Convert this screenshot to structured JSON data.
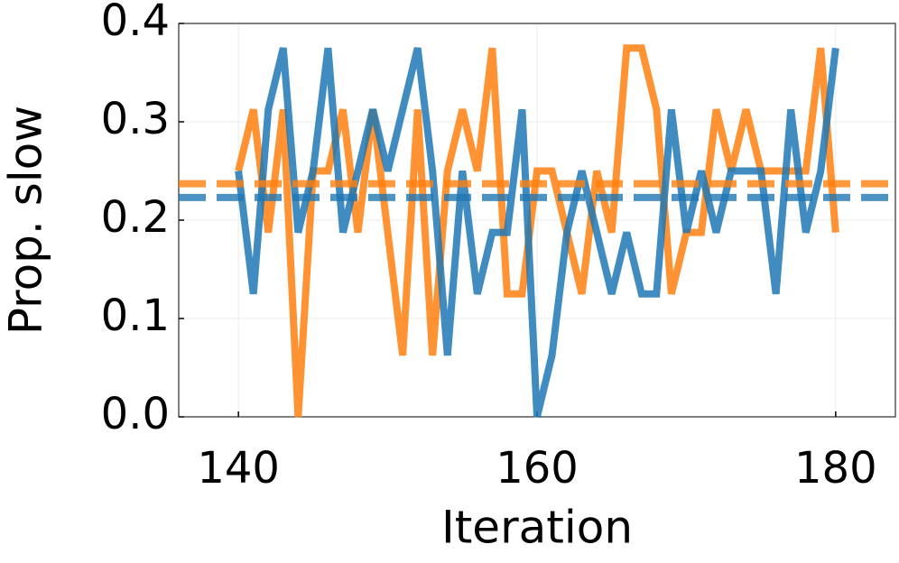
{
  "chart_data": {
    "type": "line",
    "x_label": "Iteration",
    "y_label": "Prop. slow",
    "x": [
      140,
      141,
      142,
      143,
      144,
      145,
      146,
      147,
      148,
      149,
      150,
      151,
      152,
      153,
      154,
      155,
      156,
      157,
      158,
      159,
      160,
      161,
      162,
      163,
      164,
      165,
      166,
      167,
      168,
      169,
      170,
      171,
      172,
      173,
      174,
      175,
      176,
      177,
      178,
      179,
      180
    ],
    "series": [
      {
        "color": "#ff7f0e",
        "values": [
          0.25,
          0.3125,
          0.1875,
          0.3125,
          0.0,
          0.25,
          0.25,
          0.3125,
          0.1875,
          0.3125,
          0.1875,
          0.0625,
          0.3125,
          0.0625,
          0.25,
          0.3125,
          0.25,
          0.375,
          0.125,
          0.125,
          0.25,
          0.25,
          0.1875,
          0.125,
          0.25,
          0.1875,
          0.375,
          0.375,
          0.3125,
          0.125,
          0.1875,
          0.1875,
          0.3125,
          0.25,
          0.3125,
          0.25,
          0.25,
          0.25,
          0.25,
          0.375,
          0.1875
        ]
      },
      {
        "color": "#1f77b4",
        "values": [
          0.25,
          0.125,
          0.3125,
          0.375,
          0.1875,
          0.25,
          0.375,
          0.1875,
          0.25,
          0.3125,
          0.25,
          0.3125,
          0.375,
          0.25,
          0.0625,
          0.25,
          0.125,
          0.1875,
          0.1875,
          0.3125,
          0.0,
          0.0625,
          0.1875,
          0.25,
          0.1875,
          0.125,
          0.1875,
          0.125,
          0.125,
          0.3125,
          0.1875,
          0.25,
          0.1875,
          0.25,
          0.25,
          0.25,
          0.125,
          0.3125,
          0.1875,
          0.25,
          0.375
        ]
      }
    ],
    "hlines": [
      {
        "color": "#ff7f0e",
        "value": 0.237
      },
      {
        "color": "#1f77b4",
        "value": 0.223
      }
    ],
    "xlim": [
      136,
      184
    ],
    "ylim": [
      0,
      0.4
    ],
    "xticks": [
      140,
      160,
      180
    ],
    "yticks": [
      {
        "value": 0,
        "label": "0.0"
      },
      0.1,
      0.2,
      0.3,
      0.4
    ],
    "grid": true
  }
}
